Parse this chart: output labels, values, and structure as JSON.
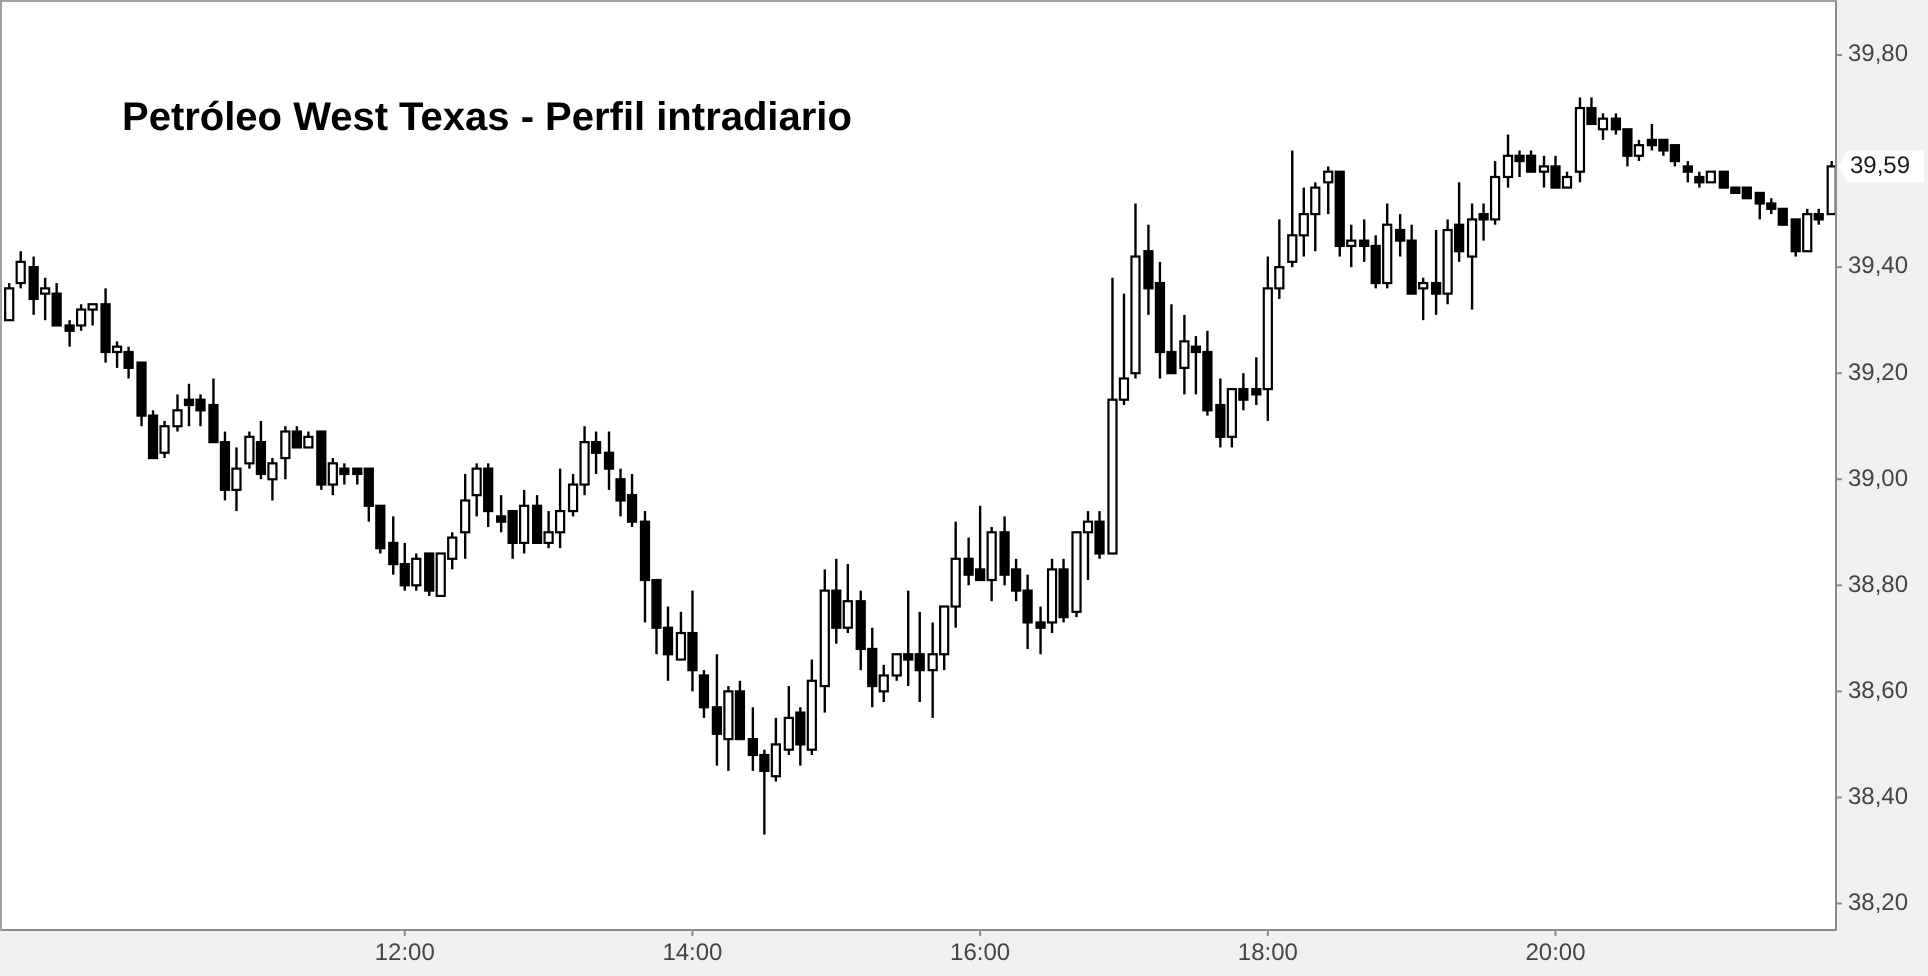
{
  "chart_data": {
    "type": "candlestick",
    "title": "Petróleo West Texas - Perfil intradiario",
    "color": "#000000",
    "x": [
      9.25,
      9.33,
      9.42,
      9.5,
      9.58,
      9.67,
      9.75,
      9.83,
      9.92,
      10,
      10.08,
      10.17,
      10.25,
      10.33,
      10.42,
      10.5,
      10.58,
      10.67,
      10.75,
      10.83,
      10.92,
      11,
      11.08,
      11.17,
      11.25,
      11.33,
      11.42,
      11.5,
      11.58,
      11.67,
      11.75,
      11.83,
      11.92,
      12,
      12.08,
      12.17,
      12.25,
      12.33,
      12.42,
      12.5,
      12.58,
      12.67,
      12.75,
      12.83,
      12.92,
      13,
      13.08,
      13.17,
      13.25,
      13.33,
      13.42,
      13.5,
      13.58,
      13.67,
      13.75,
      13.83,
      13.92,
      14,
      14.08,
      14.17,
      14.25,
      14.33,
      14.42,
      14.5,
      14.58,
      14.67,
      14.75,
      14.83,
      14.92,
      15,
      15.08,
      15.17,
      15.25,
      15.33,
      15.42,
      15.5,
      15.58,
      15.67,
      15.75,
      15.83,
      15.92,
      16,
      16.08,
      16.17,
      16.25,
      16.33,
      16.42,
      16.5,
      16.58,
      16.67,
      16.75,
      16.83,
      16.92,
      17,
      17.08,
      17.17,
      17.25,
      17.33,
      17.42,
      17.5,
      17.58,
      17.67,
      17.75,
      17.83,
      17.92,
      18,
      18.08,
      18.17,
      18.25,
      18.33,
      18.42,
      18.5,
      18.58,
      18.67,
      18.75,
      18.83,
      18.92,
      19,
      19.08,
      19.17,
      19.25,
      19.33,
      19.42,
      19.5,
      19.58,
      19.67,
      19.75,
      19.83,
      19.92,
      20,
      20.08,
      20.17,
      20.25,
      20.33,
      20.42,
      20.5,
      20.58,
      20.67,
      20.75,
      20.83,
      20.92,
      21,
      21.08,
      21.17,
      21.25,
      21.33,
      21.42,
      21.5,
      21.58,
      21.67,
      21.75,
      21.83,
      21.92
    ],
    "ohlc": [
      [
        39.3,
        39.37,
        39.3,
        39.36
      ],
      [
        39.37,
        39.43,
        39.36,
        39.41
      ],
      [
        39.4,
        39.42,
        39.31,
        39.34
      ],
      [
        39.35,
        39.38,
        39.3,
        39.36
      ],
      [
        39.35,
        39.37,
        39.29,
        39.29
      ],
      [
        39.29,
        39.3,
        39.25,
        39.28
      ],
      [
        39.29,
        39.33,
        39.28,
        39.32
      ],
      [
        39.32,
        39.33,
        39.29,
        39.33
      ],
      [
        39.33,
        39.36,
        39.22,
        39.24
      ],
      [
        39.24,
        39.26,
        39.21,
        39.25
      ],
      [
        39.24,
        39.25,
        39.19,
        39.21
      ],
      [
        39.22,
        39.22,
        39.1,
        39.12
      ],
      [
        39.12,
        39.13,
        39.04,
        39.04
      ],
      [
        39.05,
        39.11,
        39.04,
        39.1
      ],
      [
        39.1,
        39.16,
        39.09,
        39.13
      ],
      [
        39.15,
        39.18,
        39.1,
        39.14
      ],
      [
        39.15,
        39.16,
        39.1,
        39.13
      ],
      [
        39.14,
        39.19,
        39.07,
        39.07
      ],
      [
        39.07,
        39.09,
        38.96,
        38.98
      ],
      [
        38.98,
        39.06,
        38.94,
        39.02
      ],
      [
        39.03,
        39.09,
        39.02,
        39.08
      ],
      [
        39.07,
        39.11,
        39.0,
        39.01
      ],
      [
        39.0,
        39.04,
        38.96,
        39.03
      ],
      [
        39.04,
        39.1,
        39.0,
        39.09
      ],
      [
        39.09,
        39.1,
        39.06,
        39.06
      ],
      [
        39.06,
        39.09,
        39.06,
        39.08
      ],
      [
        39.09,
        39.09,
        38.98,
        38.99
      ],
      [
        38.99,
        39.04,
        38.97,
        39.03
      ],
      [
        39.02,
        39.03,
        38.99,
        39.01
      ],
      [
        39.02,
        39.02,
        38.99,
        39.01
      ],
      [
        39.02,
        39.02,
        38.92,
        38.95
      ],
      [
        38.95,
        38.95,
        38.86,
        38.87
      ],
      [
        38.88,
        38.93,
        38.82,
        38.84
      ],
      [
        38.84,
        38.88,
        38.79,
        38.8
      ],
      [
        38.8,
        38.86,
        38.79,
        38.85
      ],
      [
        38.86,
        38.86,
        38.78,
        38.79
      ],
      [
        38.78,
        38.86,
        38.78,
        38.86
      ],
      [
        38.85,
        38.9,
        38.83,
        38.89
      ],
      [
        38.9,
        39.01,
        38.85,
        38.96
      ],
      [
        38.97,
        39.03,
        38.93,
        39.02
      ],
      [
        39.02,
        39.03,
        38.91,
        38.94
      ],
      [
        38.93,
        38.97,
        38.9,
        38.92
      ],
      [
        38.94,
        38.94,
        38.85,
        38.88
      ],
      [
        38.88,
        38.98,
        38.86,
        38.95
      ],
      [
        38.95,
        38.97,
        38.88,
        38.88
      ],
      [
        38.88,
        38.94,
        38.87,
        38.9
      ],
      [
        38.9,
        39.02,
        38.87,
        38.94
      ],
      [
        38.94,
        39.01,
        38.93,
        38.99
      ],
      [
        38.99,
        39.1,
        38.97,
        39.07
      ],
      [
        39.07,
        39.09,
        39.01,
        39.05
      ],
      [
        39.05,
        39.09,
        38.98,
        39.02
      ],
      [
        39.0,
        39.02,
        38.93,
        38.96
      ],
      [
        38.97,
        39.01,
        38.91,
        38.92
      ],
      [
        38.92,
        38.94,
        38.73,
        38.81
      ],
      [
        38.81,
        38.81,
        38.67,
        38.72
      ],
      [
        38.72,
        38.76,
        38.62,
        38.67
      ],
      [
        38.66,
        38.75,
        38.66,
        38.71
      ],
      [
        38.71,
        38.79,
        38.6,
        38.64
      ],
      [
        38.63,
        38.64,
        38.55,
        38.57
      ],
      [
        38.57,
        38.67,
        38.46,
        38.52
      ],
      [
        38.51,
        38.61,
        38.45,
        38.6
      ],
      [
        38.6,
        38.62,
        38.51,
        38.51
      ],
      [
        38.51,
        38.57,
        38.45,
        38.48
      ],
      [
        38.48,
        38.49,
        38.33,
        38.45
      ],
      [
        38.44,
        38.55,
        38.43,
        38.5
      ],
      [
        38.49,
        38.61,
        38.48,
        38.55
      ],
      [
        38.56,
        38.57,
        38.46,
        38.5
      ],
      [
        38.49,
        38.66,
        38.48,
        38.62
      ],
      [
        38.61,
        38.83,
        38.56,
        38.79
      ],
      [
        38.79,
        38.85,
        38.69,
        38.72
      ],
      [
        38.72,
        38.84,
        38.71,
        38.77
      ],
      [
        38.77,
        38.79,
        38.64,
        38.68
      ],
      [
        38.68,
        38.72,
        38.57,
        38.61
      ],
      [
        38.6,
        38.65,
        38.58,
        38.63
      ],
      [
        38.63,
        38.67,
        38.62,
        38.67
      ],
      [
        38.67,
        38.79,
        38.61,
        38.66
      ],
      [
        38.67,
        38.75,
        38.58,
        38.64
      ],
      [
        38.64,
        38.73,
        38.55,
        38.67
      ],
      [
        38.67,
        38.76,
        38.64,
        38.76
      ],
      [
        38.76,
        38.92,
        38.72,
        38.85
      ],
      [
        38.85,
        38.89,
        38.8,
        38.82
      ],
      [
        38.83,
        38.95,
        38.81,
        38.81
      ],
      [
        38.81,
        38.91,
        38.77,
        38.9
      ],
      [
        38.9,
        38.93,
        38.8,
        38.82
      ],
      [
        38.83,
        38.85,
        38.77,
        38.79
      ],
      [
        38.79,
        38.82,
        38.68,
        38.73
      ],
      [
        38.73,
        38.76,
        38.67,
        38.72
      ],
      [
        38.73,
        38.85,
        38.71,
        38.83
      ],
      [
        38.83,
        38.85,
        38.73,
        38.74
      ],
      [
        38.75,
        38.9,
        38.74,
        38.9
      ],
      [
        38.9,
        38.94,
        38.81,
        38.92
      ],
      [
        38.92,
        38.94,
        38.85,
        38.86
      ],
      [
        38.86,
        39.38,
        38.86,
        39.15
      ],
      [
        39.15,
        39.35,
        39.14,
        39.19
      ],
      [
        39.2,
        39.52,
        39.19,
        39.42
      ],
      [
        39.43,
        39.48,
        39.31,
        39.36
      ],
      [
        39.37,
        39.41,
        39.19,
        39.24
      ],
      [
        39.24,
        39.33,
        39.2,
        39.2
      ],
      [
        39.21,
        39.31,
        39.16,
        39.26
      ],
      [
        39.25,
        39.27,
        39.16,
        39.24
      ],
      [
        39.24,
        39.28,
        39.12,
        39.13
      ],
      [
        39.14,
        39.19,
        39.06,
        39.08
      ],
      [
        39.08,
        39.17,
        39.06,
        39.17
      ],
      [
        39.17,
        39.2,
        39.13,
        39.15
      ],
      [
        39.17,
        39.23,
        39.14,
        39.16
      ],
      [
        39.17,
        39.42,
        39.11,
        39.36
      ],
      [
        39.36,
        39.49,
        39.34,
        39.4
      ],
      [
        39.41,
        39.62,
        39.4,
        39.46
      ],
      [
        39.46,
        39.55,
        39.42,
        39.5
      ],
      [
        39.5,
        39.56,
        39.43,
        39.55
      ],
      [
        39.56,
        39.59,
        39.5,
        39.58
      ],
      [
        39.58,
        39.58,
        39.42,
        39.44
      ],
      [
        39.44,
        39.48,
        39.4,
        39.45
      ],
      [
        39.45,
        39.49,
        39.41,
        39.44
      ],
      [
        39.44,
        39.46,
        39.36,
        39.37
      ],
      [
        39.37,
        39.52,
        39.36,
        39.48
      ],
      [
        39.47,
        39.5,
        39.42,
        39.45
      ],
      [
        39.45,
        39.48,
        39.35,
        39.35
      ],
      [
        39.36,
        39.38,
        39.3,
        39.37
      ],
      [
        39.37,
        39.47,
        39.31,
        39.35
      ],
      [
        39.35,
        39.49,
        39.33,
        39.47
      ],
      [
        39.48,
        39.56,
        39.41,
        39.43
      ],
      [
        39.42,
        39.52,
        39.32,
        39.49
      ],
      [
        39.5,
        39.52,
        39.45,
        39.49
      ],
      [
        39.49,
        39.6,
        39.48,
        39.57
      ],
      [
        39.57,
        39.65,
        39.55,
        39.61
      ],
      [
        39.61,
        39.62,
        39.57,
        39.6
      ],
      [
        39.61,
        39.62,
        39.58,
        39.58
      ],
      [
        39.58,
        39.61,
        39.55,
        39.59
      ],
      [
        39.59,
        39.61,
        39.55,
        39.55
      ],
      [
        39.55,
        39.58,
        39.55,
        39.57
      ],
      [
        39.58,
        39.72,
        39.56,
        39.7
      ],
      [
        39.7,
        39.72,
        39.67,
        39.67
      ],
      [
        39.66,
        39.69,
        39.64,
        39.68
      ],
      [
        39.68,
        39.69,
        39.65,
        39.66
      ],
      [
        39.66,
        39.66,
        39.59,
        39.61
      ],
      [
        39.61,
        39.64,
        39.6,
        39.63
      ],
      [
        39.64,
        39.67,
        39.62,
        39.63
      ],
      [
        39.64,
        39.64,
        39.61,
        39.62
      ],
      [
        39.63,
        39.63,
        39.59,
        39.6
      ],
      [
        39.59,
        39.6,
        39.56,
        39.58
      ],
      [
        39.57,
        39.58,
        39.55,
        39.56
      ],
      [
        39.56,
        39.58,
        39.56,
        39.58
      ],
      [
        39.58,
        39.58,
        39.55,
        39.55
      ],
      [
        39.55,
        39.55,
        39.54,
        39.54
      ],
      [
        39.55,
        39.55,
        39.53,
        39.53
      ],
      [
        39.54,
        39.54,
        39.49,
        39.52
      ],
      [
        39.52,
        39.53,
        39.5,
        39.51
      ],
      [
        39.51,
        39.51,
        39.48,
        39.48
      ],
      [
        39.49,
        39.49,
        39.42,
        39.43
      ],
      [
        39.43,
        39.51,
        39.43,
        39.5
      ],
      [
        39.5,
        39.51,
        39.48,
        39.49
      ],
      [
        39.5,
        39.6,
        39.5,
        39.59
      ]
    ],
    "xlim": [
      9.2,
      21.95
    ],
    "xticks": [
      {
        "value": 12,
        "label": "12:00"
      },
      {
        "value": 14,
        "label": "14:00"
      },
      {
        "value": 16,
        "label": "16:00"
      },
      {
        "value": 18,
        "label": "18:00"
      },
      {
        "value": 20,
        "label": "20:00"
      }
    ],
    "ylim": [
      38.15,
      39.9
    ],
    "yticks": [
      {
        "value": 38.2,
        "label": "38,20"
      },
      {
        "value": 38.4,
        "label": "38,40"
      },
      {
        "value": 38.6,
        "label": "38,60"
      },
      {
        "value": 38.8,
        "label": "38,80"
      },
      {
        "value": 39,
        "label": "39,00"
      },
      {
        "value": 39.2,
        "label": "39,20"
      },
      {
        "value": 39.4,
        "label": "39,40"
      },
      {
        "value": 39.8,
        "label": "39,80"
      }
    ],
    "annotations": [
      {
        "text": "39,59",
        "y": 39.59
      }
    ]
  }
}
